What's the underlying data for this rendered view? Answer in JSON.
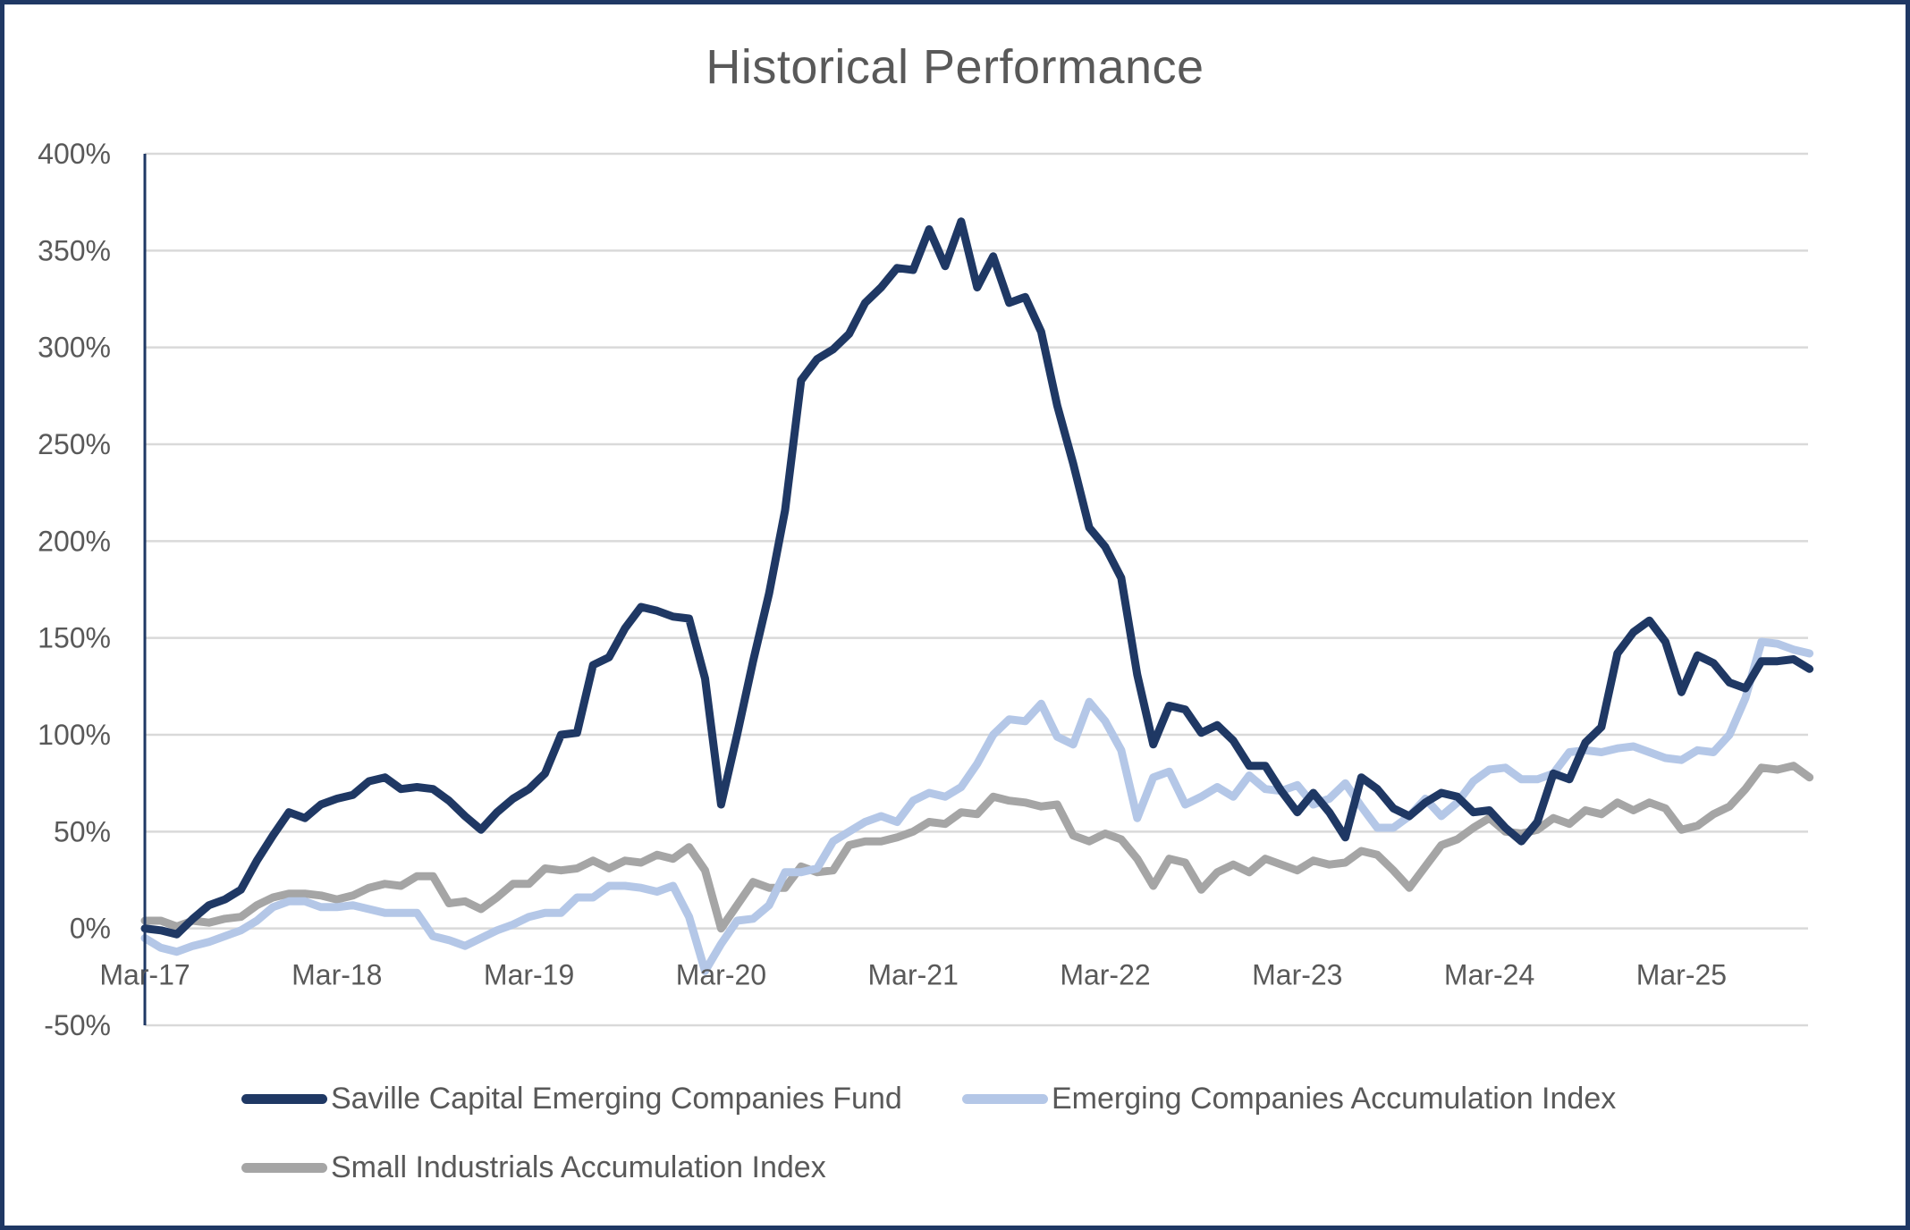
{
  "chart_data": {
    "type": "line",
    "title": "Historical Performance",
    "xlabel": "",
    "ylabel": "",
    "ylim": [
      -0.5,
      4.0
    ],
    "y_ticks": [
      {
        "value": 4.0,
        "label": "400%"
      },
      {
        "value": 3.5,
        "label": "350%"
      },
      {
        "value": 3.0,
        "label": "300%"
      },
      {
        "value": 2.5,
        "label": "250%"
      },
      {
        "value": 2.0,
        "label": "200%"
      },
      {
        "value": 1.5,
        "label": "150%"
      },
      {
        "value": 1.0,
        "label": "100%"
      },
      {
        "value": 0.5,
        "label": "50%"
      },
      {
        "value": 0.0,
        "label": "0%"
      },
      {
        "value": -0.5,
        "label": "-50%"
      }
    ],
    "x_ticks": [
      {
        "index": 0,
        "label": "Mar-17"
      },
      {
        "index": 12,
        "label": "Mar-18"
      },
      {
        "index": 24,
        "label": "Mar-19"
      },
      {
        "index": 36,
        "label": "Mar-20"
      },
      {
        "index": 48,
        "label": "Mar-21"
      },
      {
        "index": 60,
        "label": "Mar-22"
      },
      {
        "index": 72,
        "label": "Mar-23"
      },
      {
        "index": 84,
        "label": "Mar-24"
      },
      {
        "index": 96,
        "label": "Mar-25"
      }
    ],
    "x_frequency": "monthly",
    "x_start": "Mar-17",
    "x_count": 105,
    "grid": true,
    "legend_position": "bottom",
    "series": [
      {
        "name": "Saville Capital Emerging Companies Fund",
        "color": "#1f3864",
        "values": [
          0.0,
          -0.01,
          -0.03,
          0.05,
          0.12,
          0.15,
          0.2,
          0.35,
          0.48,
          0.6,
          0.57,
          0.64,
          0.67,
          0.69,
          0.76,
          0.78,
          0.72,
          0.73,
          0.72,
          0.66,
          0.58,
          0.51,
          0.6,
          0.67,
          0.72,
          0.8,
          1.0,
          1.01,
          1.36,
          1.4,
          1.55,
          1.66,
          1.64,
          1.61,
          1.6,
          1.29,
          0.64,
          1.0,
          1.38,
          1.73,
          2.16,
          2.83,
          2.94,
          2.99,
          3.07,
          3.23,
          3.31,
          3.41,
          3.4,
          3.61,
          3.42,
          3.65,
          3.31,
          3.47,
          3.23,
          3.26,
          3.08,
          2.7,
          2.4,
          2.07,
          1.97,
          1.81,
          1.31,
          0.95,
          1.15,
          1.13,
          1.01,
          1.05,
          0.97,
          0.84,
          0.84,
          0.71,
          0.6,
          0.7,
          0.6,
          0.47,
          0.78,
          0.72,
          0.62,
          0.58,
          0.65,
          0.7,
          0.68,
          0.6,
          0.61,
          0.52,
          0.45,
          0.55,
          0.8,
          0.77,
          0.96,
          1.04,
          1.42,
          1.53,
          1.59,
          1.48,
          1.22,
          1.41,
          1.37,
          1.27,
          1.24,
          1.38,
          1.38,
          1.39,
          1.34
        ]
      },
      {
        "name": "Emerging Companies Accumulation Index",
        "color": "#b4c7e7",
        "values": [
          -0.05,
          -0.1,
          -0.12,
          -0.09,
          -0.07,
          -0.04,
          -0.01,
          0.04,
          0.11,
          0.14,
          0.14,
          0.11,
          0.11,
          0.12,
          0.1,
          0.08,
          0.08,
          0.08,
          -0.04,
          -0.06,
          -0.09,
          -0.05,
          -0.01,
          0.02,
          0.06,
          0.08,
          0.08,
          0.16,
          0.16,
          0.22,
          0.22,
          0.21,
          0.19,
          0.22,
          0.06,
          -0.22,
          -0.08,
          0.04,
          0.05,
          0.12,
          0.29,
          0.29,
          0.31,
          0.45,
          0.5,
          0.55,
          0.58,
          0.55,
          0.66,
          0.7,
          0.68,
          0.73,
          0.85,
          1.0,
          1.08,
          1.07,
          1.16,
          0.99,
          0.95,
          1.17,
          1.07,
          0.92,
          0.57,
          0.78,
          0.81,
          0.64,
          0.68,
          0.73,
          0.68,
          0.79,
          0.72,
          0.71,
          0.74,
          0.64,
          0.67,
          0.75,
          0.63,
          0.52,
          0.52,
          0.58,
          0.67,
          0.58,
          0.65,
          0.76,
          0.82,
          0.83,
          0.77,
          0.77,
          0.8,
          0.91,
          0.92,
          0.91,
          0.93,
          0.94,
          0.91,
          0.88,
          0.87,
          0.92,
          0.91,
          1.0,
          1.19,
          1.48,
          1.47,
          1.44,
          1.42
        ]
      },
      {
        "name": "Small Industrials Accumulation Index",
        "color": "#a5a5a5",
        "values": [
          0.04,
          0.04,
          0.01,
          0.04,
          0.03,
          0.05,
          0.06,
          0.12,
          0.16,
          0.18,
          0.18,
          0.17,
          0.15,
          0.17,
          0.21,
          0.23,
          0.22,
          0.27,
          0.27,
          0.13,
          0.14,
          0.1,
          0.16,
          0.23,
          0.23,
          0.31,
          0.3,
          0.31,
          0.35,
          0.31,
          0.35,
          0.34,
          0.38,
          0.36,
          0.42,
          0.3,
          0.0,
          0.12,
          0.24,
          0.21,
          0.21,
          0.32,
          0.29,
          0.3,
          0.43,
          0.45,
          0.45,
          0.47,
          0.5,
          0.55,
          0.54,
          0.6,
          0.59,
          0.68,
          0.66,
          0.65,
          0.63,
          0.64,
          0.48,
          0.45,
          0.49,
          0.46,
          0.36,
          0.22,
          0.36,
          0.34,
          0.2,
          0.29,
          0.33,
          0.29,
          0.36,
          0.33,
          0.3,
          0.35,
          0.33,
          0.34,
          0.4,
          0.38,
          0.3,
          0.21,
          0.32,
          0.43,
          0.46,
          0.52,
          0.57,
          0.5,
          0.49,
          0.51,
          0.57,
          0.54,
          0.61,
          0.59,
          0.65,
          0.61,
          0.65,
          0.62,
          0.51,
          0.53,
          0.59,
          0.63,
          0.72,
          0.83,
          0.82,
          0.84,
          0.78
        ]
      }
    ]
  }
}
